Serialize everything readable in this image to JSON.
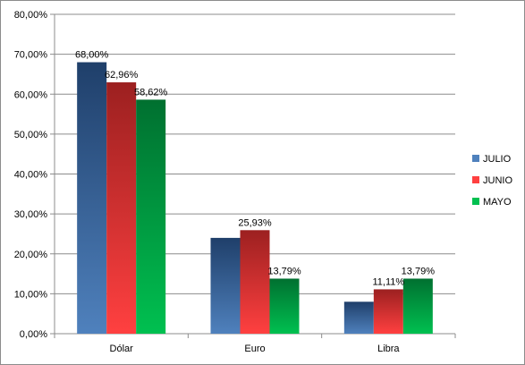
{
  "chart_data": {
    "type": "bar",
    "title": "",
    "xlabel": "",
    "ylabel": "",
    "categories": [
      "Dólar",
      "Euro",
      "Libra"
    ],
    "series": [
      {
        "name": "JULIO",
        "values": [
          68.0,
          24.0,
          8.0
        ],
        "labels": [
          "68,00%",
          "",
          ""
        ],
        "color_light": "#4f81bd",
        "color_dark": "#1f3f6a"
      },
      {
        "name": "JUNIO",
        "values": [
          62.96,
          25.93,
          11.11
        ],
        "labels": [
          "62,96%",
          "25,93%",
          "11,11%"
        ],
        "color_light": "#ff4040",
        "color_dark": "#9c2020"
      },
      {
        "name": "MAYO",
        "values": [
          58.62,
          13.79,
          13.79
        ],
        "labels": [
          "58,62%",
          "13,79%",
          "13,79%"
        ],
        "color_light": "#00c050",
        "color_dark": "#007030"
      }
    ],
    "ylim": [
      0,
      80
    ],
    "yticks": [
      "0,00%",
      "10,00%",
      "20,00%",
      "30,00%",
      "40,00%",
      "50,00%",
      "60,00%",
      "70,00%",
      "80,00%"
    ],
    "grid": true,
    "legend_position": "right"
  }
}
